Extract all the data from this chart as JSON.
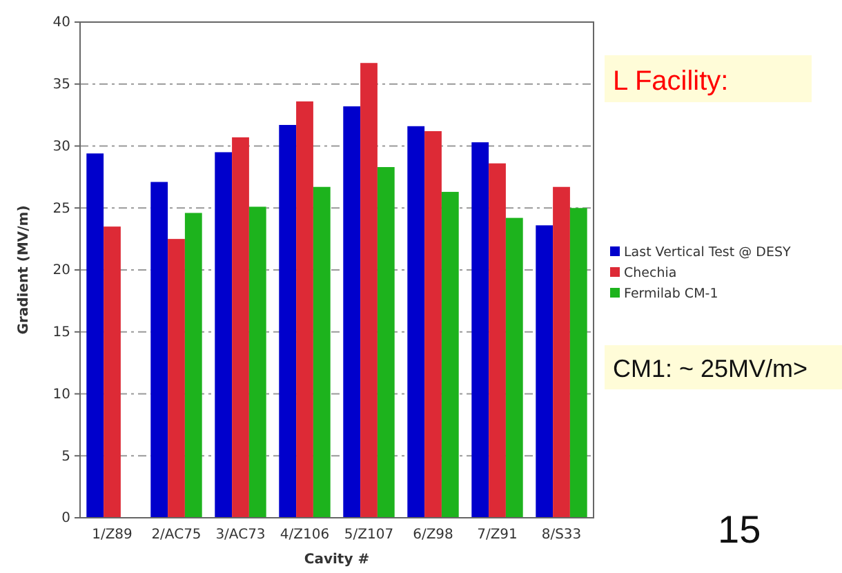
{
  "chart_data": {
    "type": "bar",
    "xlabel": "Cavity #",
    "ylabel": "Gradient (MV/m)",
    "categories": [
      "1/Z89",
      "2/AC75",
      "3/AC73",
      "4/Z106",
      "5/Z107",
      "6/Z98",
      "7/Z91",
      "8/S33"
    ],
    "series": [
      {
        "name": "Last Vertical Test @ DESY",
        "color": "#0000cc",
        "values": [
          29.4,
          27.1,
          29.5,
          31.7,
          33.2,
          31.6,
          30.3,
          23.6
        ]
      },
      {
        "name": "Chechia",
        "color": "#dd2a36",
        "values": [
          23.5,
          22.5,
          30.7,
          33.6,
          36.7,
          31.2,
          28.6,
          26.7
        ]
      },
      {
        "name": "Fermilab CM-1",
        "color": "#1db31d",
        "values": [
          null,
          24.6,
          25.1,
          26.7,
          28.3,
          26.3,
          24.2,
          25.0
        ]
      }
    ],
    "ylim": [
      0,
      40
    ],
    "yticks": [
      0,
      5,
      10,
      15,
      20,
      25,
      30,
      35,
      40
    ],
    "grid": "y",
    "legend": "right",
    "annotations": [
      "L Facility:",
      "CM1:  ~ 25MV/m>",
      "15"
    ]
  }
}
